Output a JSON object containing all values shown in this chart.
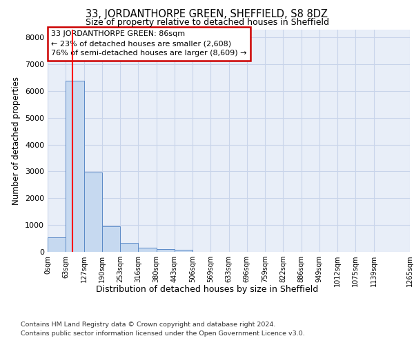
{
  "title": "33, JORDANTHORPE GREEN, SHEFFIELD, S8 8DZ",
  "subtitle": "Size of property relative to detached houses in Sheffield",
  "xlabel": "Distribution of detached houses by size in Sheffield",
  "ylabel": "Number of detached properties",
  "footnote1": "Contains HM Land Registry data © Crown copyright and database right 2024.",
  "footnote2": "Contains public sector information licensed under the Open Government Licence v3.0.",
  "annotation_title": "33 JORDANTHORPE GREEN: 86sqm",
  "annotation_line2": "← 23% of detached houses are smaller (2,608)",
  "annotation_line3": "76% of semi-detached houses are larger (8,609) →",
  "bar_values": [
    550,
    6380,
    2960,
    960,
    340,
    160,
    110,
    80,
    0,
    0,
    0,
    0,
    0,
    0,
    0,
    0,
    0,
    0,
    0
  ],
  "bin_edges": [
    0,
    63,
    127,
    190,
    253,
    316,
    380,
    443,
    506,
    569,
    633,
    696,
    759,
    822,
    886,
    949,
    1012,
    1075,
    1139,
    1265
  ],
  "tick_labels": [
    "0sqm",
    "63sqm",
    "127sqm",
    "190sqm",
    "253sqm",
    "316sqm",
    "380sqm",
    "443sqm",
    "506sqm",
    "569sqm",
    "633sqm",
    "696sqm",
    "759sqm",
    "822sqm",
    "886sqm",
    "949sqm",
    "1012sqm",
    "1075sqm",
    "1139sqm",
    "1265sqm"
  ],
  "bar_color": "#c6d9f0",
  "bar_edge_color": "#5b8ac7",
  "grid_color": "#c8d4ea",
  "background_color": "#e8eef8",
  "annotation_box_color": "#cc0000",
  "property_line_x": 86,
  "ylim": [
    0,
    8300
  ],
  "yticks": [
    0,
    1000,
    2000,
    3000,
    4000,
    5000,
    6000,
    7000,
    8000
  ]
}
